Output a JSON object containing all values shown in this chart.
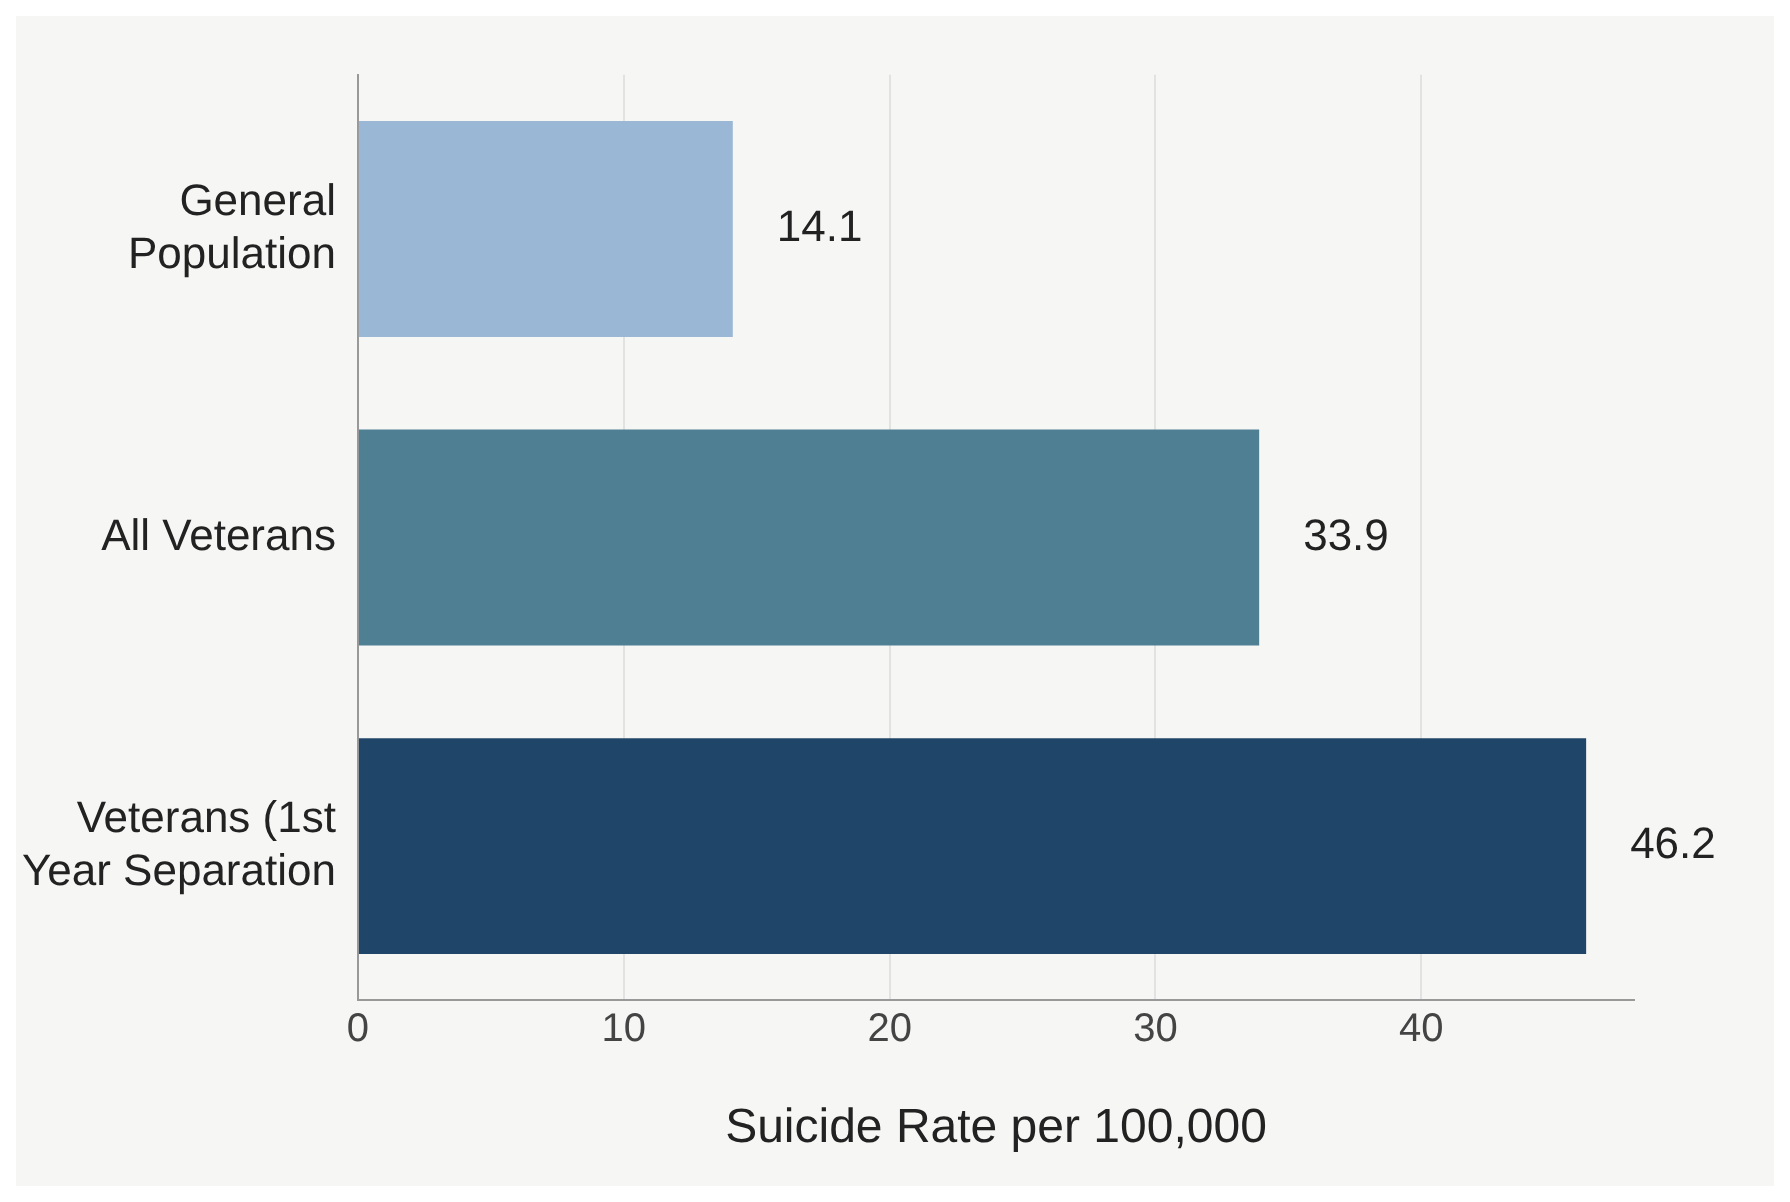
{
  "chart_data": {
    "type": "bar",
    "orientation": "horizontal",
    "xlabel": "Suicide Rate per 100,000",
    "categories": [
      "General Population",
      "All Veterans",
      "Veterans (1st Year Separation"
    ],
    "values": [
      14.1,
      33.9,
      46.2
    ],
    "colors": [
      "#9ab8d6",
      "#4e7f92",
      "#1f4568"
    ],
    "xlim": [
      0,
      48
    ],
    "xticks": [
      0,
      10,
      20,
      30,
      40
    ],
    "grid": "x",
    "data_labels": true,
    "legend": false
  }
}
